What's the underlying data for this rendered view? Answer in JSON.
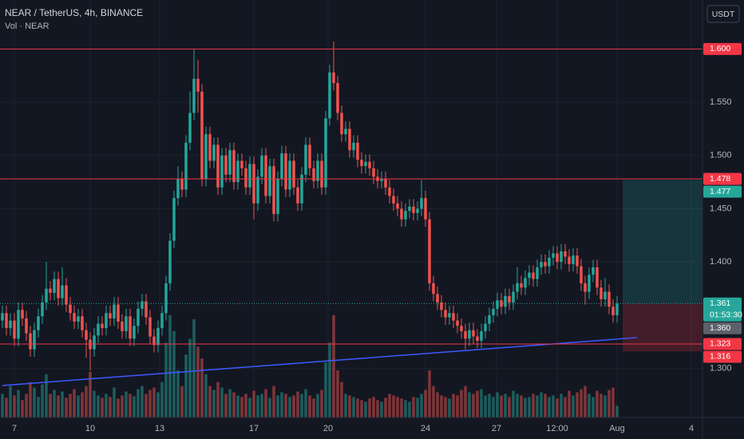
{
  "chart_data": {
    "type": "candlestick",
    "title": "NEAR / TetherUS, 4h, BINANCE",
    "subtitle": "Vol · NEAR",
    "currency": "USDT",
    "up_color": "#26a69a",
    "down_color": "#ef5350",
    "trend_color": "#3d5afe",
    "xlim": [
      -0.6,
      175.4
    ],
    "ylim": [
      1.254,
      1.646
    ],
    "vlim": [
      0,
      132
    ],
    "yticks": [
      {
        "value": 1.55,
        "label": "1.550"
      },
      {
        "value": 1.5,
        "label": "1.500"
      },
      {
        "value": 1.45,
        "label": "1.450"
      },
      {
        "value": 1.4,
        "label": "1.400"
      },
      {
        "value": 1.3,
        "label": "1.300"
      }
    ],
    "xticks": [
      {
        "value": 3,
        "label": "7"
      },
      {
        "value": 22,
        "label": "10"
      },
      {
        "value": 39.4,
        "label": "13"
      },
      {
        "value": 63,
        "label": "17"
      },
      {
        "value": 81.6,
        "label": "20"
      },
      {
        "value": 106,
        "label": "24"
      },
      {
        "value": 123.8,
        "label": "27"
      },
      {
        "value": 139,
        "label": "12:00"
      },
      {
        "value": 154,
        "label": "Aug"
      },
      {
        "value": 172.6,
        "label": "4"
      }
    ],
    "grid": true,
    "open": [
      1.345,
      1.352,
      1.338,
      1.345,
      1.328,
      1.355,
      1.347,
      1.333,
      1.318,
      1.336,
      1.349,
      1.362,
      1.375,
      1.371,
      1.384,
      1.366,
      1.378,
      1.36,
      1.352,
      1.344,
      1.349,
      1.336,
      1.327,
      1.318,
      1.331,
      1.342,
      1.338,
      1.352,
      1.347,
      1.36,
      1.344,
      1.335,
      1.349,
      1.328,
      1.34,
      1.356,
      1.363,
      1.348,
      1.33,
      1.322,
      1.338,
      1.352,
      1.38,
      1.42,
      1.46,
      1.478,
      1.468,
      1.512,
      1.54,
      1.572,
      1.56,
      1.478,
      1.52,
      1.495,
      1.51,
      1.47,
      1.5,
      1.482,
      1.505,
      1.475,
      1.495,
      1.488,
      1.47,
      1.492,
      1.455,
      1.48,
      1.5,
      1.462,
      1.49,
      1.445,
      1.478,
      1.502,
      1.468,
      1.495,
      1.47,
      1.455,
      1.482,
      1.51,
      1.488,
      1.476,
      1.495,
      1.47,
      1.535,
      1.578,
      1.568,
      1.54,
      1.52,
      1.525,
      1.505,
      1.512,
      1.496,
      1.49,
      1.494,
      1.488,
      1.48,
      1.476,
      1.478,
      1.47,
      1.462,
      1.455,
      1.45,
      1.44,
      1.448,
      1.452,
      1.446,
      1.45,
      1.46,
      1.44,
      1.38,
      1.37,
      1.362,
      1.355,
      1.348,
      1.352,
      1.345,
      1.34,
      1.335,
      1.328,
      1.336,
      1.33,
      1.326,
      1.335,
      1.342,
      1.35,
      1.356,
      1.364,
      1.358,
      1.368,
      1.362,
      1.372,
      1.38,
      1.376,
      1.385,
      1.39,
      1.384,
      1.395,
      1.4,
      1.396,
      1.404,
      1.408,
      1.4,
      1.41,
      1.405,
      1.398,
      1.406,
      1.396,
      1.38,
      1.372,
      1.388,
      1.395,
      1.376,
      1.365,
      1.372,
      1.358,
      1.35
    ],
    "high": [
      1.359,
      1.359,
      1.352,
      1.352,
      1.362,
      1.362,
      1.354,
      1.34,
      1.343,
      1.356,
      1.369,
      1.4,
      1.382,
      1.391,
      1.391,
      1.395,
      1.385,
      1.367,
      1.359,
      1.356,
      1.356,
      1.343,
      1.334,
      1.338,
      1.349,
      1.349,
      1.359,
      1.359,
      1.367,
      1.367,
      1.351,
      1.356,
      1.356,
      1.347,
      1.363,
      1.37,
      1.37,
      1.355,
      1.337,
      1.345,
      1.359,
      1.387,
      1.427,
      1.467,
      1.49,
      1.485,
      1.519,
      1.56,
      1.6,
      1.59,
      1.567,
      1.527,
      1.527,
      1.517,
      1.517,
      1.507,
      1.507,
      1.512,
      1.512,
      1.502,
      1.502,
      1.495,
      1.499,
      1.499,
      1.487,
      1.507,
      1.507,
      1.497,
      1.497,
      1.485,
      1.509,
      1.509,
      1.502,
      1.502,
      1.477,
      1.489,
      1.517,
      1.517,
      1.495,
      1.502,
      1.502,
      1.542,
      1.585,
      1.607,
      1.575,
      1.547,
      1.532,
      1.532,
      1.519,
      1.519,
      1.503,
      1.501,
      1.501,
      1.495,
      1.487,
      1.485,
      1.485,
      1.477,
      1.469,
      1.462,
      1.457,
      1.455,
      1.459,
      1.459,
      1.457,
      1.477,
      1.467,
      1.447,
      1.387,
      1.377,
      1.369,
      1.362,
      1.359,
      1.359,
      1.352,
      1.347,
      1.342,
      1.343,
      1.343,
      1.337,
      1.342,
      1.349,
      1.357,
      1.363,
      1.371,
      1.371,
      1.375,
      1.375,
      1.379,
      1.395,
      1.387,
      1.392,
      1.397,
      1.397,
      1.402,
      1.407,
      1.407,
      1.411,
      1.415,
      1.415,
      1.417,
      1.417,
      1.412,
      1.413,
      1.413,
      1.403,
      1.387,
      1.395,
      1.402,
      1.402,
      1.383,
      1.385,
      1.379,
      1.365,
      1.368
    ],
    "low": [
      1.338,
      1.331,
      1.331,
      1.321,
      1.321,
      1.34,
      1.326,
      1.311,
      1.311,
      1.329,
      1.342,
      1.355,
      1.364,
      1.364,
      1.359,
      1.359,
      1.353,
      1.345,
      1.337,
      1.337,
      1.329,
      1.31,
      1.298,
      1.311,
      1.324,
      1.331,
      1.331,
      1.34,
      1.34,
      1.337,
      1.328,
      1.328,
      1.321,
      1.321,
      1.333,
      1.349,
      1.341,
      1.323,
      1.315,
      1.315,
      1.331,
      1.345,
      1.373,
      1.413,
      1.453,
      1.461,
      1.461,
      1.505,
      1.533,
      1.54,
      1.471,
      1.471,
      1.488,
      1.488,
      1.463,
      1.463,
      1.475,
      1.475,
      1.468,
      1.468,
      1.481,
      1.463,
      1.463,
      1.44,
      1.448,
      1.473,
      1.455,
      1.455,
      1.438,
      1.438,
      1.471,
      1.461,
      1.461,
      1.463,
      1.448,
      1.448,
      1.475,
      1.481,
      1.469,
      1.469,
      1.463,
      1.463,
      1.528,
      1.561,
      1.533,
      1.513,
      1.513,
      1.498,
      1.498,
      1.489,
      1.483,
      1.483,
      1.481,
      1.473,
      1.469,
      1.469,
      1.463,
      1.455,
      1.448,
      1.443,
      1.433,
      1.433,
      1.441,
      1.439,
      1.439,
      1.443,
      1.433,
      1.373,
      1.363,
      1.355,
      1.348,
      1.341,
      1.341,
      1.338,
      1.333,
      1.328,
      1.318,
      1.321,
      1.323,
      1.319,
      1.319,
      1.328,
      1.335,
      1.343,
      1.349,
      1.351,
      1.351,
      1.355,
      1.355,
      1.365,
      1.369,
      1.369,
      1.378,
      1.377,
      1.377,
      1.388,
      1.389,
      1.389,
      1.397,
      1.393,
      1.393,
      1.398,
      1.391,
      1.391,
      1.389,
      1.373,
      1.36,
      1.365,
      1.381,
      1.369,
      1.358,
      1.358,
      1.351,
      1.343,
      1.343
    ],
    "close": [
      1.352,
      1.338,
      1.345,
      1.328,
      1.355,
      1.347,
      1.333,
      1.318,
      1.336,
      1.349,
      1.362,
      1.375,
      1.371,
      1.384,
      1.366,
      1.378,
      1.36,
      1.352,
      1.344,
      1.349,
      1.336,
      1.327,
      1.318,
      1.331,
      1.342,
      1.338,
      1.352,
      1.347,
      1.36,
      1.344,
      1.335,
      1.349,
      1.328,
      1.34,
      1.356,
      1.363,
      1.348,
      1.33,
      1.322,
      1.338,
      1.352,
      1.38,
      1.42,
      1.46,
      1.478,
      1.468,
      1.512,
      1.54,
      1.572,
      1.56,
      1.478,
      1.52,
      1.495,
      1.51,
      1.47,
      1.5,
      1.482,
      1.505,
      1.475,
      1.495,
      1.488,
      1.47,
      1.492,
      1.455,
      1.48,
      1.5,
      1.462,
      1.49,
      1.445,
      1.478,
      1.502,
      1.468,
      1.495,
      1.47,
      1.455,
      1.482,
      1.51,
      1.488,
      1.476,
      1.495,
      1.47,
      1.535,
      1.578,
      1.568,
      1.54,
      1.52,
      1.525,
      1.505,
      1.512,
      1.496,
      1.49,
      1.494,
      1.488,
      1.48,
      1.476,
      1.478,
      1.47,
      1.462,
      1.455,
      1.45,
      1.44,
      1.448,
      1.452,
      1.446,
      1.45,
      1.46,
      1.44,
      1.38,
      1.37,
      1.362,
      1.355,
      1.348,
      1.352,
      1.345,
      1.34,
      1.335,
      1.328,
      1.336,
      1.33,
      1.326,
      1.335,
      1.342,
      1.35,
      1.356,
      1.364,
      1.358,
      1.368,
      1.362,
      1.372,
      1.38,
      1.376,
      1.385,
      1.39,
      1.384,
      1.395,
      1.4,
      1.396,
      1.404,
      1.408,
      1.4,
      1.41,
      1.405,
      1.398,
      1.406,
      1.396,
      1.38,
      1.372,
      1.388,
      1.395,
      1.376,
      1.365,
      1.372,
      1.358,
      1.35,
      1.361
    ],
    "volume": [
      30,
      25,
      40,
      28,
      35,
      22,
      30,
      45,
      38,
      26,
      42,
      55,
      30,
      35,
      28,
      33,
      25,
      30,
      36,
      28,
      32,
      40,
      58,
      34,
      28,
      25,
      30,
      26,
      38,
      24,
      28,
      33,
      30,
      27,
      36,
      40,
      30,
      35,
      38,
      32,
      45,
      95,
      130,
      110,
      60,
      40,
      80,
      100,
      125,
      90,
      75,
      55,
      40,
      35,
      45,
      38,
      30,
      36,
      32,
      28,
      26,
      30,
      25,
      34,
      28,
      30,
      36,
      25,
      40,
      28,
      32,
      30,
      26,
      28,
      33,
      30,
      36,
      28,
      24,
      30,
      35,
      70,
      95,
      130,
      60,
      45,
      30,
      28,
      26,
      24,
      22,
      20,
      24,
      26,
      22,
      20,
      25,
      30,
      28,
      26,
      24,
      22,
      20,
      26,
      25,
      30,
      35,
      60,
      40,
      32,
      28,
      26,
      24,
      30,
      28,
      35,
      40,
      32,
      30,
      34,
      36,
      28,
      30,
      26,
      32,
      28,
      30,
      26,
      34,
      30,
      28,
      25,
      26,
      30,
      28,
      32,
      30,
      26,
      28,
      24,
      30,
      26,
      34,
      28,
      32,
      36,
      40,
      30,
      26,
      34,
      30,
      28,
      35,
      38,
      15
    ],
    "trend_line": {
      "x": [
        0,
        159
      ],
      "y": [
        1.284,
        1.329
      ]
    },
    "levels": [
      {
        "value": 1.6,
        "label": "1.600"
      },
      {
        "value": 1.478,
        "label": "1.478"
      },
      {
        "value": 1.323,
        "label": "1.323"
      }
    ],
    "level_color": "#f23645",
    "tags": [
      {
        "value": 1.477,
        "label": "1.477",
        "color": "#26a69a"
      },
      {
        "value": 1.361,
        "label": "1.361",
        "sub": "01:53:30",
        "color": "#26a69a"
      },
      {
        "value": 1.36,
        "label": "1.360",
        "color": "#5d606b"
      },
      {
        "value": 1.316,
        "label": "1.316",
        "color": "#f23645"
      }
    ],
    "position": {
      "start": 155.4,
      "target": 1.477,
      "entry": 1.361,
      "stop": 1.316
    }
  }
}
